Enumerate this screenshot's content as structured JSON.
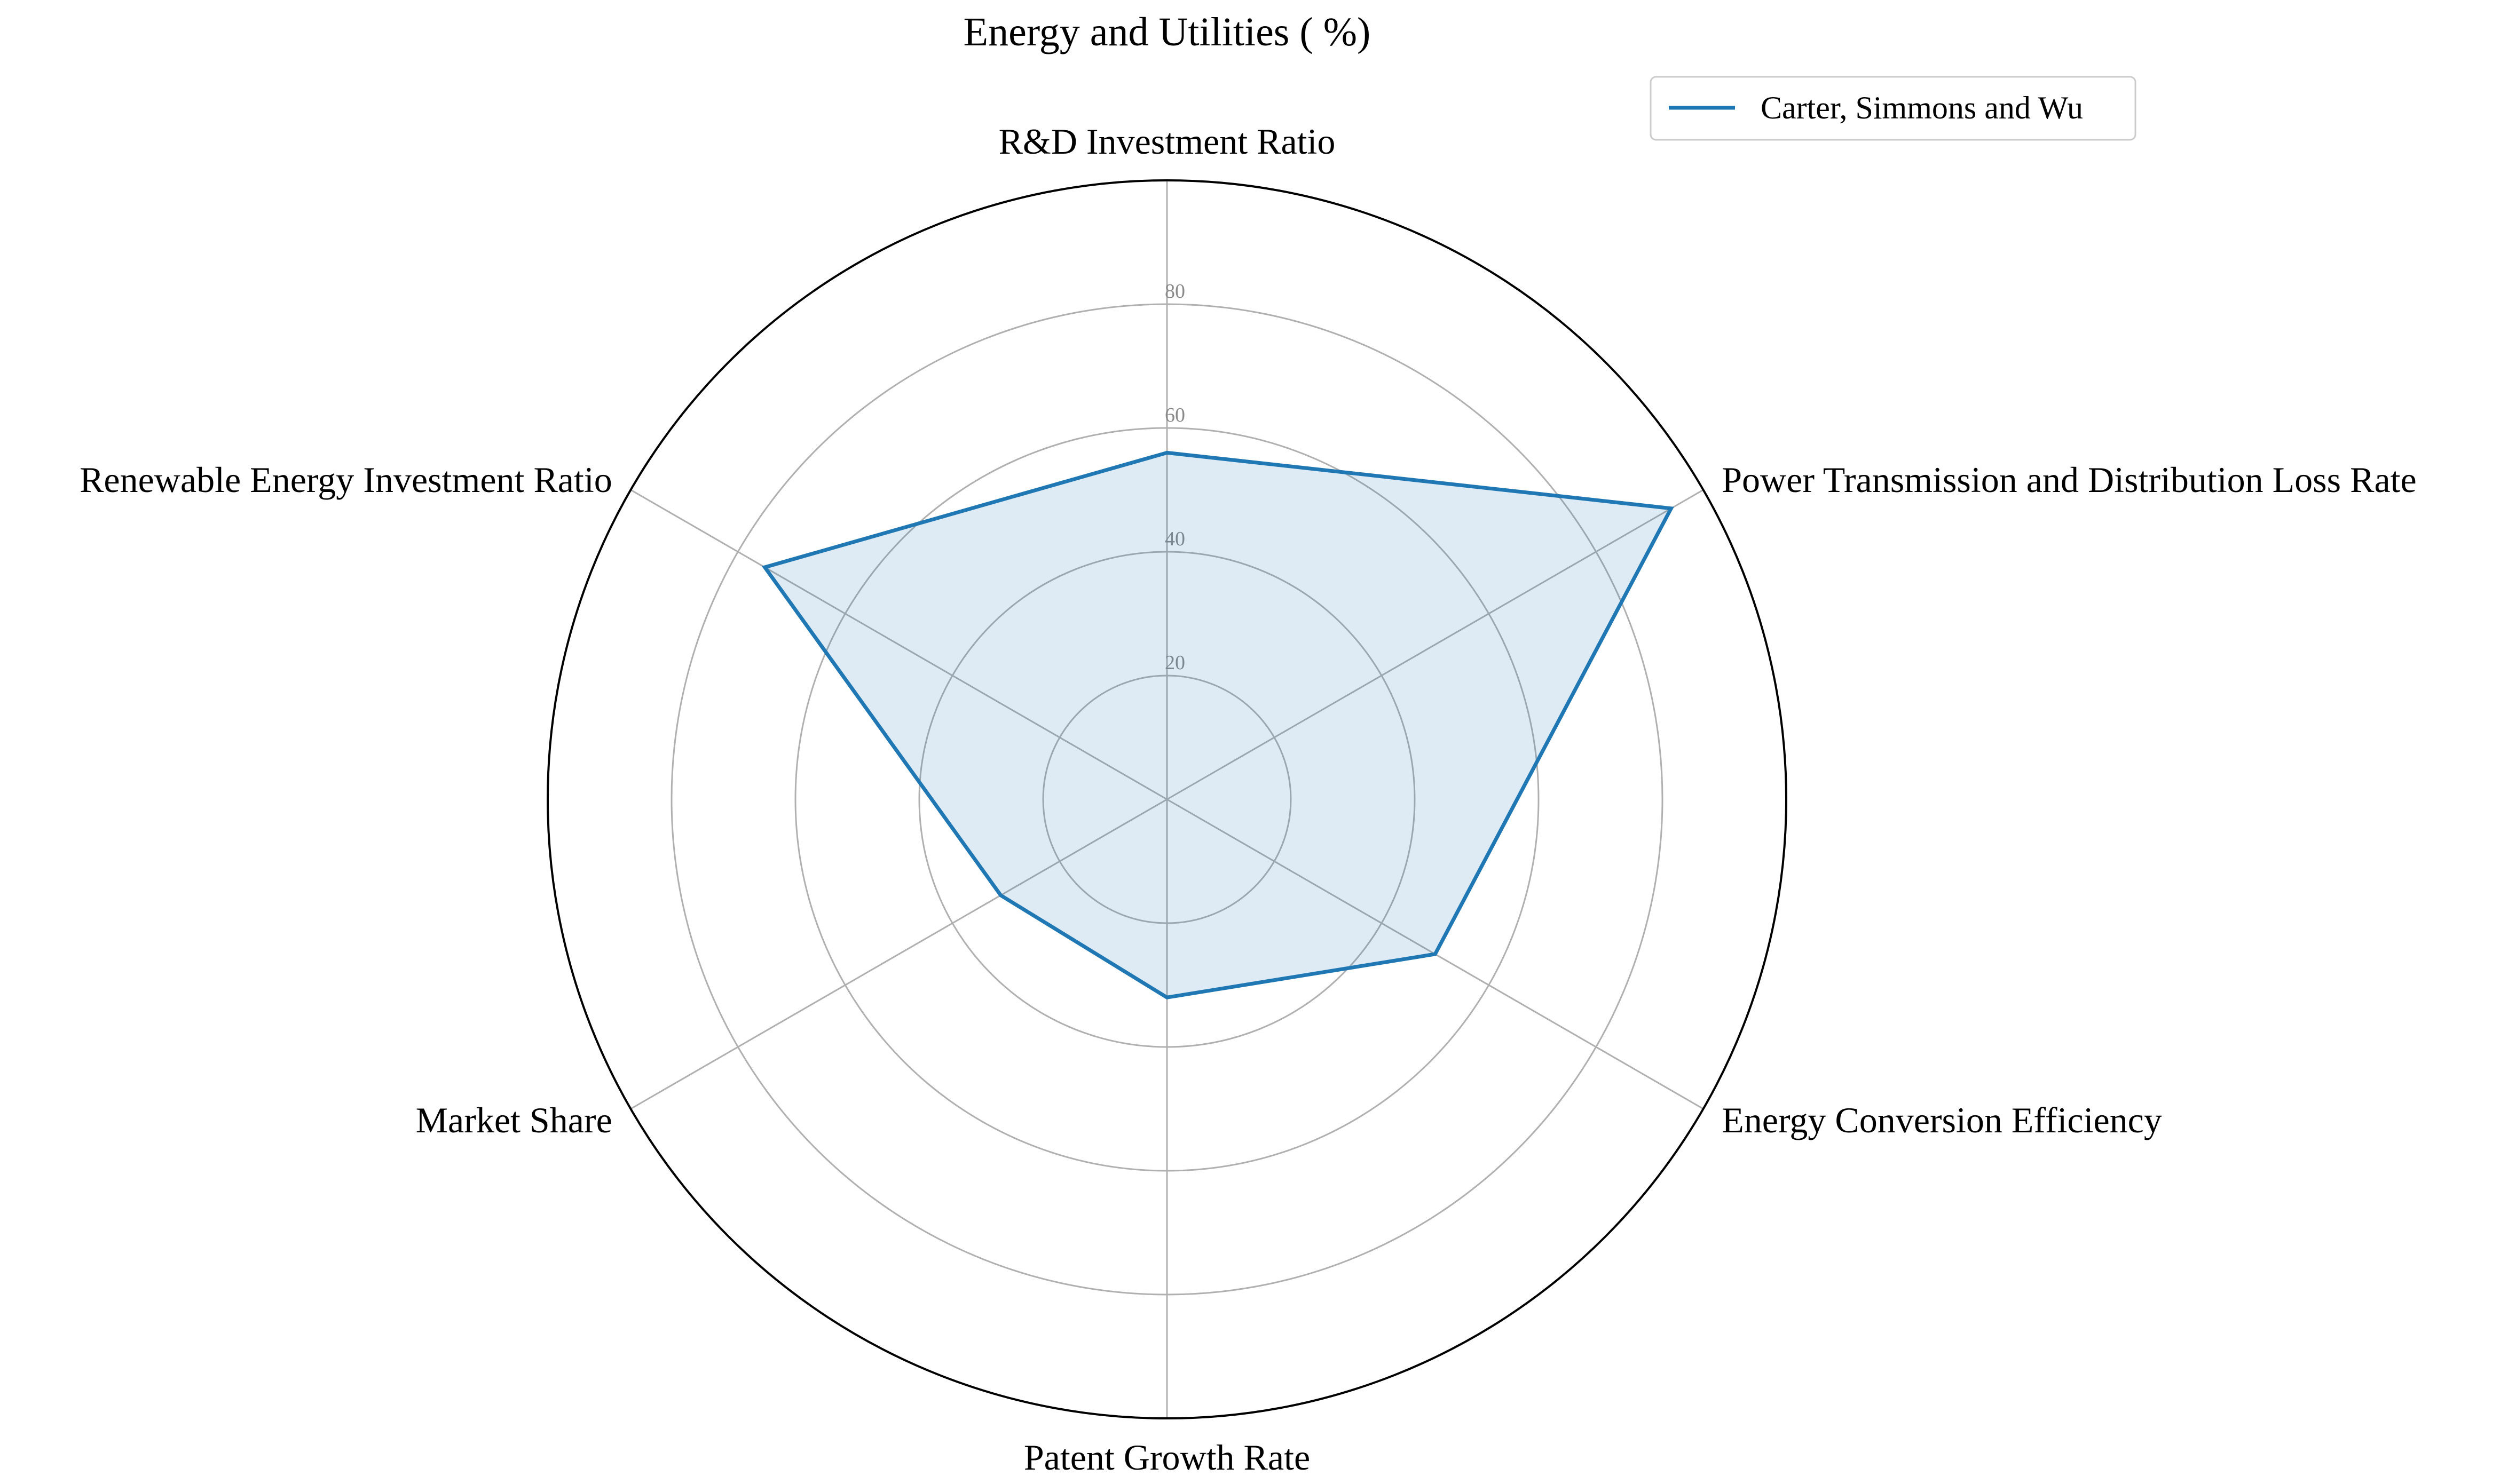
{
  "chart_data": {
    "type": "radar",
    "title": "Energy and Utilities ( %)",
    "axes": [
      "R&D Investment Ratio",
      "Power Transmission and Distribution Loss Rate",
      "Energy Conversion Efficiency",
      "Patent Growth Rate",
      "Market Share",
      "Renewable Energy Investment Ratio"
    ],
    "rlim": [
      0,
      100
    ],
    "radial_ticks": [
      20,
      40,
      60,
      80
    ],
    "grid": true,
    "legend_position": "top-right",
    "series": [
      {
        "name": "Carter, Simmons and Wu",
        "values": [
          56,
          94,
          50,
          32,
          31,
          75
        ],
        "color": "#1f77b4",
        "fill_color": "#1f77b4",
        "fill_opacity": 0.15
      }
    ]
  },
  "colors": {
    "grid": "#b0b0b0",
    "outer_ring": "#000000",
    "tick_text": "#8a8a8a"
  }
}
